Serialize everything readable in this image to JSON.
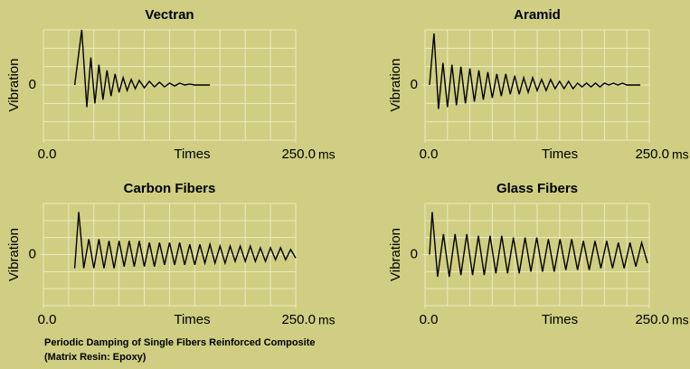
{
  "chart_data": [
    {
      "type": "line",
      "title": "Vectran",
      "y_label": "Vibration",
      "x_label": "Times",
      "x_unit": "ms",
      "xlim": [
        0,
        250
      ],
      "xticks": [
        {
          "value": 0,
          "label": "0.0"
        },
        {
          "value": 250,
          "label": "250.0"
        }
      ],
      "ylim": [
        -3,
        3
      ],
      "yticks": [
        0
      ],
      "series": [
        {
          "color": "#000000",
          "x": [
            31,
            38,
            43,
            47,
            51,
            55,
            59,
            63,
            67,
            71,
            75,
            79,
            83,
            87,
            91,
            95,
            100,
            105,
            110,
            115,
            120,
            125,
            130,
            135,
            140,
            145,
            150,
            155,
            160,
            165
          ],
          "values": [
            0,
            3,
            -1.2,
            1.5,
            -1,
            1.1,
            -0.8,
            0.8,
            -0.6,
            0.6,
            -0.4,
            0.4,
            -0.3,
            0.3,
            -0.2,
            0.25,
            -0.15,
            0.2,
            -0.1,
            0.15,
            -0.1,
            0.1,
            -0.05,
            0.1,
            0,
            0.05,
            0,
            0,
            0,
            0
          ]
        }
      ]
    },
    {
      "type": "line",
      "title": "Aramid",
      "y_label": "Vibration",
      "x_label": "Times",
      "x_unit": "ms",
      "xlim": [
        0,
        250
      ],
      "xticks": [
        {
          "value": 0,
          "label": "0.0"
        },
        {
          "value": 250,
          "label": "250.0"
        }
      ],
      "ylim": [
        -3,
        3
      ],
      "yticks": [
        0
      ],
      "series": [
        {
          "color": "#000000",
          "x": [
            5,
            10,
            15,
            20,
            25,
            30,
            35,
            40,
            45,
            50,
            55,
            60,
            65,
            70,
            75,
            80,
            85,
            90,
            95,
            100,
            105,
            110,
            115,
            120,
            125,
            130,
            135,
            140,
            145,
            150,
            155,
            160,
            165,
            170,
            175,
            180,
            185,
            190,
            195,
            200,
            205,
            210,
            215,
            220,
            225,
            230,
            235,
            240
          ],
          "values": [
            0,
            2.8,
            -1.3,
            1.2,
            -1.2,
            1.1,
            -1.1,
            1.0,
            -1.0,
            0.9,
            -0.9,
            0.8,
            -0.8,
            0.7,
            -0.7,
            0.6,
            -0.6,
            0.6,
            -0.5,
            0.5,
            -0.5,
            0.4,
            -0.4,
            0.4,
            -0.3,
            0.3,
            -0.3,
            0.3,
            -0.2,
            0.2,
            -0.2,
            0.2,
            -0.2,
            0.1,
            -0.1,
            0.1,
            -0.1,
            0.1,
            -0.1,
            0.1,
            0,
            0.1,
            0,
            0.1,
            0,
            0,
            0,
            0
          ]
        }
      ]
    },
    {
      "type": "line",
      "title": "Carbon Fibers",
      "y_label": "Vibration",
      "x_label": "Times",
      "x_unit": "ms",
      "xlim": [
        0,
        250
      ],
      "xticks": [
        {
          "value": 0,
          "label": "0.0"
        },
        {
          "value": 250,
          "label": "250.0"
        }
      ],
      "ylim": [
        -3,
        3
      ],
      "yticks": [
        0
      ],
      "series": [
        {
          "color": "#000000",
          "x": [
            31,
            35,
            40,
            45,
            50,
            55,
            60,
            65,
            70,
            75,
            80,
            85,
            90,
            95,
            100,
            105,
            110,
            115,
            120,
            125,
            130,
            135,
            140,
            145,
            150,
            155,
            160,
            165,
            170,
            175,
            180,
            185,
            190,
            195,
            200,
            205,
            210,
            215,
            220,
            225,
            230,
            235,
            240,
            245,
            250
          ],
          "values": [
            -0.8,
            2.5,
            -0.8,
            0.9,
            -0.8,
            0.9,
            -0.8,
            0.8,
            -0.8,
            0.8,
            -0.7,
            0.8,
            -0.7,
            0.8,
            -0.7,
            0.7,
            -0.7,
            0.7,
            -0.6,
            0.7,
            -0.6,
            0.7,
            -0.6,
            0.6,
            -0.6,
            0.6,
            -0.5,
            0.6,
            -0.5,
            0.5,
            -0.5,
            0.5,
            -0.4,
            0.5,
            -0.4,
            0.5,
            -0.4,
            0.4,
            -0.4,
            0.4,
            -0.3,
            0.4,
            -0.3,
            0.3,
            -0.2
          ]
        }
      ]
    },
    {
      "type": "line",
      "title": "Glass Fibers",
      "y_label": "Vibration",
      "x_label": "Times",
      "x_unit": "ms",
      "xlim": [
        0,
        250
      ],
      "xticks": [
        {
          "value": 0,
          "label": "0.0"
        },
        {
          "value": 250,
          "label": "250.0"
        }
      ],
      "ylim": [
        -3,
        3
      ],
      "yticks": [
        0
      ],
      "series": [
        {
          "color": "#000000",
          "x": [
            5,
            8,
            14,
            20.5,
            27,
            33.5,
            40,
            46.5,
            53,
            59.5,
            66,
            72.5,
            79,
            85.5,
            92,
            98.5,
            105,
            111.5,
            118,
            124.5,
            131,
            137.5,
            144,
            150.5,
            157,
            163.5,
            170,
            176.5,
            183,
            189.5,
            196,
            202.5,
            209,
            215.5,
            222,
            228.5,
            235,
            241.5,
            248
          ],
          "values": [
            0,
            2.5,
            -1.3,
            1.2,
            -1.3,
            1.2,
            -1.2,
            1.2,
            -1.2,
            1.1,
            -1.2,
            1.1,
            -1.1,
            1.1,
            -1.1,
            1.0,
            -1.1,
            1.0,
            -1.0,
            1.0,
            -1.0,
            0.9,
            -1.0,
            0.9,
            -0.9,
            0.9,
            -0.9,
            0.8,
            -0.9,
            0.8,
            -0.8,
            0.8,
            -0.8,
            0.7,
            -0.8,
            0.7,
            -0.7,
            0.7,
            -0.5
          ]
        }
      ]
    }
  ],
  "caption": [
    "Periodic Damping of Single Fibers Reinforced Composite",
    "(Matrix Resin: Epoxy)"
  ]
}
